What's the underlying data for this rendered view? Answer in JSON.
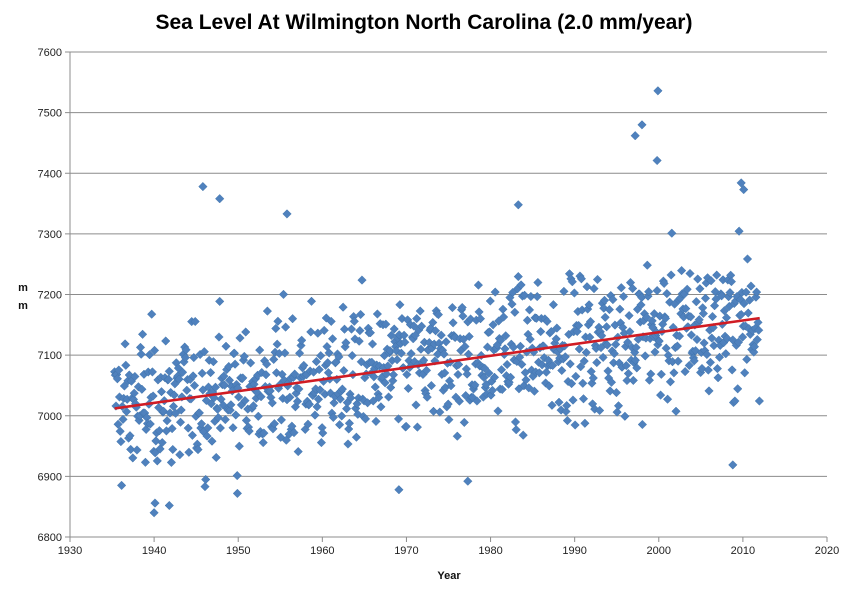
{
  "chart_data": {
    "type": "scatter",
    "title": "Sea Level At Wilmington North Carolina (2.0 mm/year)",
    "xlabel": "Year",
    "ylabel": "mm",
    "xlim": [
      1930,
      2020
    ],
    "ylim": [
      6800,
      7600
    ],
    "xticks": [
      1930,
      1940,
      1950,
      1960,
      1970,
      1980,
      1990,
      2000,
      2010,
      2020
    ],
    "yticks": [
      6800,
      6900,
      7000,
      7100,
      7200,
      7300,
      7400,
      7500,
      7600
    ],
    "grid": "horizontal",
    "legend": "none",
    "marker_color": "#4f81bd",
    "trend_color": "#d01c24",
    "trend_line": {
      "x": [
        1935.3,
        2012.0
      ],
      "y": [
        7012,
        7161
      ]
    },
    "monthly_start": 1935.3,
    "monthly_end": 2012.0,
    "notable_points": [
      {
        "x": 1945.8,
        "y": 7378
      },
      {
        "x": 1947.8,
        "y": 7358
      },
      {
        "x": 1955.8,
        "y": 7333
      },
      {
        "x": 1983.3,
        "y": 7348
      },
      {
        "x": 1997.2,
        "y": 7462
      },
      {
        "x": 1998.0,
        "y": 7480
      },
      {
        "x": 1999.9,
        "y": 7536
      },
      {
        "x": 1999.8,
        "y": 7421
      },
      {
        "x": 2009.8,
        "y": 7384
      },
      {
        "x": 2010.1,
        "y": 7373
      },
      {
        "x": 1940.0,
        "y": 6840
      },
      {
        "x": 1940.1,
        "y": 6856
      },
      {
        "x": 1941.8,
        "y": 6852
      },
      {
        "x": 1949.9,
        "y": 6872
      },
      {
        "x": 1969.1,
        "y": 6878
      },
      {
        "x": 1977.3,
        "y": 6892
      },
      {
        "x": 2008.8,
        "y": 6919
      }
    ]
  }
}
